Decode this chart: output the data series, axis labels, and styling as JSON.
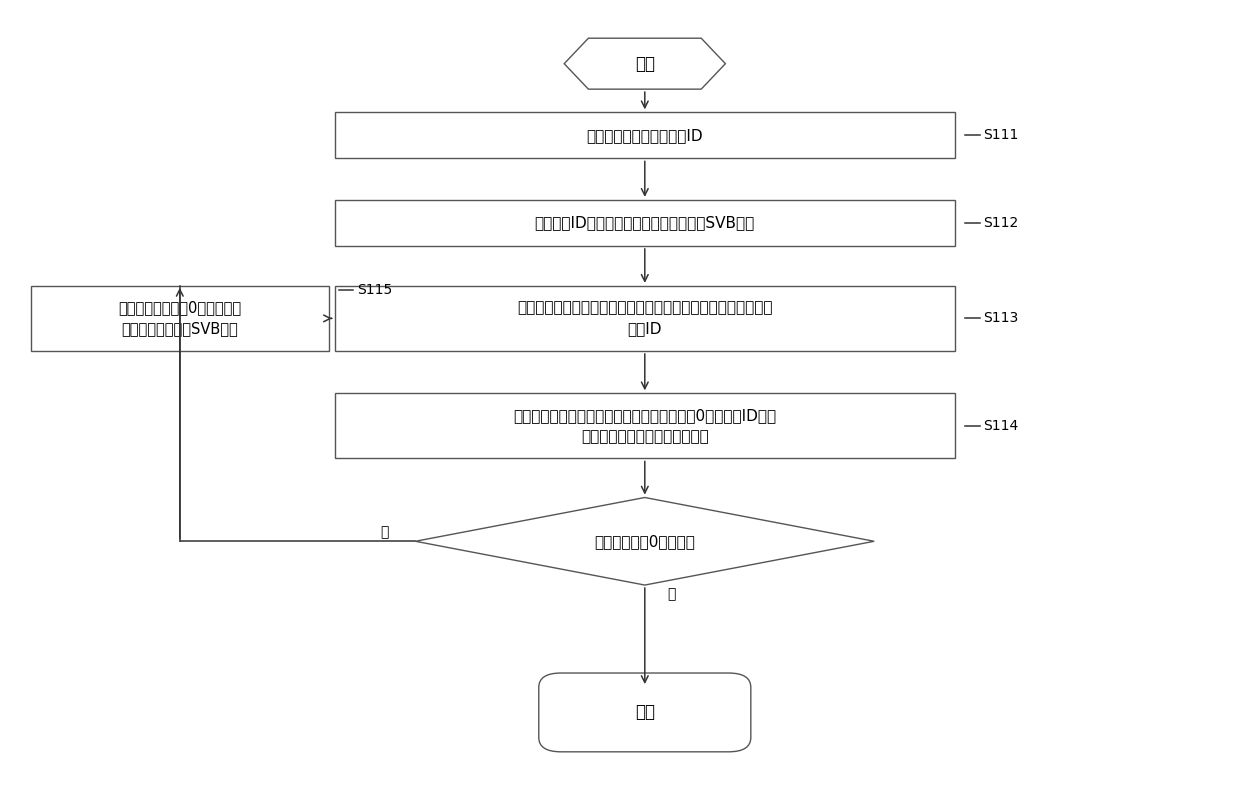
{
  "bg_color": "#ffffff",
  "line_color": "#333333",
  "box_edge_color": "#555555",
  "text_color": "#000000",
  "font_size": 11,
  "start_text": "开始",
  "end_text": "结束",
  "s111_text": "所述主机获取所有从机的ID",
  "s112_text": "指定任一ID的从机输出所述预设的电压至SVB总线",
  "s113_text": "检测本端的电压值，同时接收各从机检测并上报的各从机的电压\n值和ID",
  "s114_text": "根据所述主机和从机的电压值，获取电压值非0的从机的ID和地\n址的对应关系，得到从机的地址",
  "s115_text": "指定任一电压值为0的从机输出\n所述预设的电压至SVB总线",
  "diamond_text": "存在电压值为0的从机？",
  "yes_label": "是",
  "no_label": "否",
  "label_s111": "S111",
  "label_s112": "S112",
  "label_s113": "S113",
  "label_s114": "S114",
  "label_s115": "S115"
}
